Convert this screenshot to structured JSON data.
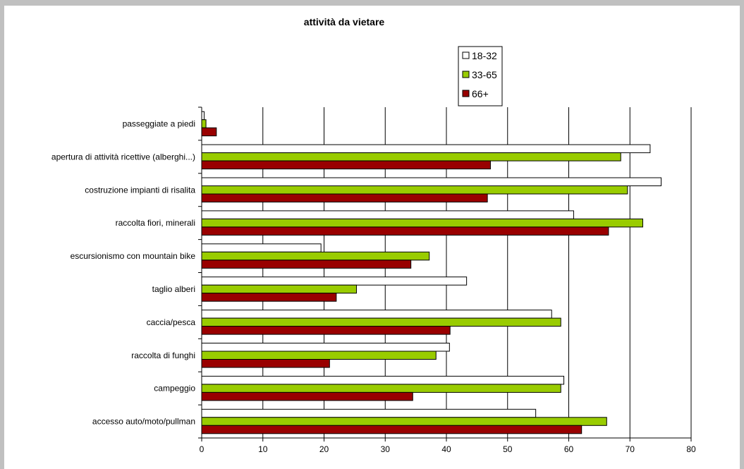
{
  "chart_data": {
    "type": "bar",
    "orientation": "horizontal",
    "title": "attività da vietare",
    "xlabel": "",
    "ylabel": "",
    "xlim": [
      0,
      80
    ],
    "x_ticks": [
      0,
      10,
      20,
      30,
      40,
      50,
      60,
      70,
      80
    ],
    "grid": true,
    "legend_position": "top-center",
    "categories": [
      "passeggiate a piedi",
      "apertura di attività ricettive (alberghi...)",
      "costruzione impianti di risalita",
      "raccolta fiori, minerali",
      "escursionismo con mountain bike",
      "taglio alberi",
      "caccia/pesca",
      "raccolta di funghi",
      "campeggio",
      "accesso auto/moto/pullman"
    ],
    "series": [
      {
        "name": "18-32",
        "color": "#ffffff",
        "values": [
          0.4,
          73.3,
          75.1,
          60.8,
          19.5,
          43.3,
          57.2,
          40.5,
          59.2,
          54.6
        ]
      },
      {
        "name": "33-65",
        "color": "#99cc00",
        "values": [
          0.7,
          68.5,
          69.6,
          72.1,
          37.2,
          25.3,
          58.7,
          38.3,
          58.7,
          66.2
        ]
      },
      {
        "name": "66+",
        "color": "#990000",
        "values": [
          2.4,
          47.2,
          46.7,
          66.5,
          34.2,
          22.0,
          40.6,
          20.9,
          34.5,
          62.1
        ]
      }
    ]
  }
}
